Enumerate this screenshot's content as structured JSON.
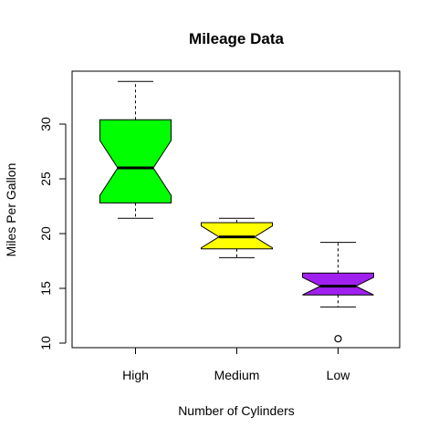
{
  "chart_data": {
    "type": "boxplot",
    "title": "Mileage Data",
    "xlabel": "Number of Cylinders",
    "ylabel": "Miles Per Gallon",
    "ylim": [
      9.6,
      34.8
    ],
    "y_ticks": [
      10,
      15,
      20,
      25,
      30
    ],
    "notched": true,
    "grid": false,
    "categories": [
      "High",
      "Medium",
      "Low"
    ],
    "boxes": [
      {
        "category": "High",
        "whisker_low": 21.4,
        "q1": 22.8,
        "notch_low": 23.5,
        "median": 26.0,
        "notch_high": 28.5,
        "q3": 30.4,
        "whisker_high": 33.9,
        "outliers": [],
        "color": "#00ff00"
      },
      {
        "category": "Medium",
        "whisker_low": 17.8,
        "q1": 18.6,
        "notch_low": 18.7,
        "median": 19.7,
        "notch_high": 20.7,
        "q3": 21.0,
        "whisker_high": 21.4,
        "outliers": [],
        "color": "#ffff00"
      },
      {
        "category": "Low",
        "whisker_low": 13.3,
        "q1": 14.4,
        "notch_low": 14.4,
        "median": 15.2,
        "notch_high": 16.0,
        "q3": 16.4,
        "whisker_high": 19.2,
        "outliers": [
          10.4
        ],
        "color": "#a020f0"
      }
    ]
  }
}
